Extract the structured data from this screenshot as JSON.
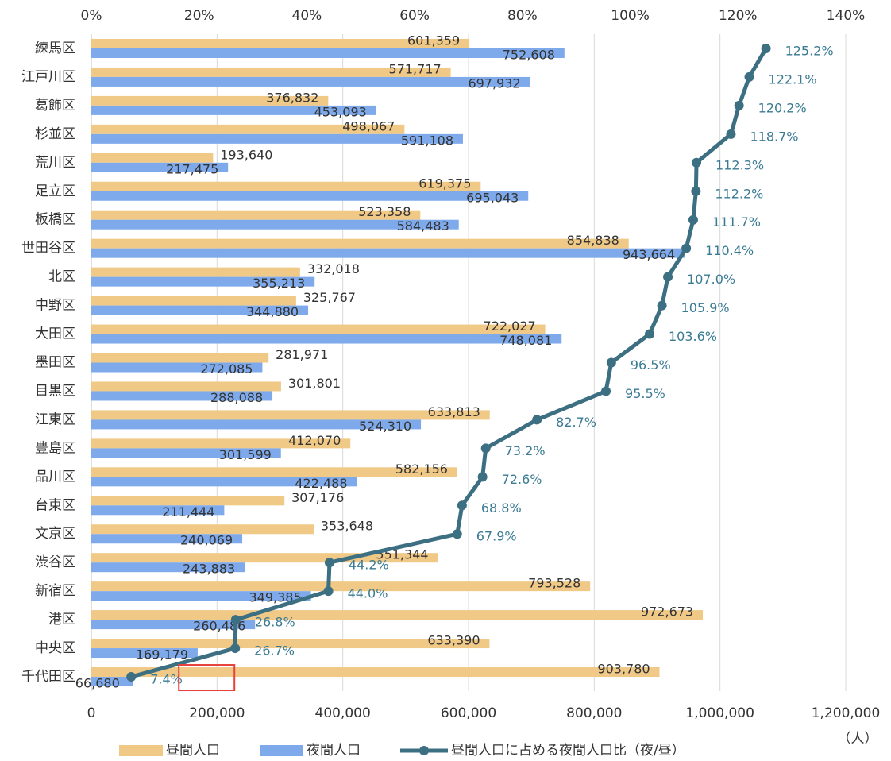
{
  "chart_data": {
    "type": "bar",
    "orientation": "horizontal",
    "categories": [
      "練馬区",
      "江戸川区",
      "葛飾区",
      "杉並区",
      "荒川区",
      "足立区",
      "板橋区",
      "世田谷区",
      "北区",
      "中野区",
      "大田区",
      "墨田区",
      "目黒区",
      "江東区",
      "豊島区",
      "品川区",
      "台東区",
      "文京区",
      "渋谷区",
      "新宿区",
      "港区",
      "中央区",
      "千代田区"
    ],
    "series": [
      {
        "name": "昼間人口",
        "color": "#f0c987",
        "values": [
          601359,
          571717,
          376832,
          498067,
          193640,
          619375,
          523358,
          854838,
          332018,
          325767,
          722027,
          281971,
          301801,
          633813,
          412070,
          582156,
          307176,
          353648,
          551344,
          793528,
          972673,
          633390,
          903780
        ],
        "value_labels": [
          "601,359",
          "571,717",
          "376,832",
          "498,067",
          "193,640",
          "619,375",
          "523,358",
          "854,838",
          "332,018",
          "325,767",
          "722,027",
          "281,971",
          "301,801",
          "633,813",
          "412,070",
          "582,156",
          "307,176",
          "353,648",
          "551,344",
          "793,528",
          "972,673",
          "633,390",
          "903,780"
        ]
      },
      {
        "name": "夜間人口",
        "color": "#7eaaec",
        "values": [
          752608,
          697932,
          453093,
          591108,
          217475,
          695043,
          584483,
          943664,
          355213,
          344880,
          748081,
          272085,
          288088,
          524310,
          301599,
          422488,
          211444,
          240069,
          243883,
          349385,
          260486,
          169179,
          66680
        ],
        "value_labels": [
          "752,608",
          "697,932",
          "453,093",
          "591,108",
          "217,475",
          "695,043",
          "584,483",
          "943,664",
          "355,213",
          "344,880",
          "748,081",
          "272,085",
          "288,088",
          "524,310",
          "301,599",
          "422,488",
          "211,444",
          "240,069",
          "243,883",
          "349,385",
          "260,486",
          "169,179",
          "66,680"
        ]
      },
      {
        "name": "昼間人口に占める夜間人口比（夜/昼）",
        "color": "#3d6f82",
        "type": "line",
        "axis": "x2",
        "values": [
          125.2,
          122.1,
          120.2,
          118.7,
          112.3,
          112.2,
          111.7,
          110.4,
          107.0,
          105.9,
          103.6,
          96.5,
          95.5,
          82.7,
          73.2,
          72.6,
          68.8,
          67.9,
          44.2,
          44.0,
          26.8,
          26.7,
          7.4
        ],
        "value_labels": [
          "125.2%",
          "122.1%",
          "120.2%",
          "118.7%",
          "112.3%",
          "112.2%",
          "111.7%",
          "110.4%",
          "107.0%",
          "105.9%",
          "103.6%",
          "96.5%",
          "95.5%",
          "82.7%",
          "73.2%",
          "72.6%",
          "68.8%",
          "67.9%",
          "44.2%",
          "44.0%",
          "26.8%",
          "26.7%",
          "7.4%"
        ]
      }
    ],
    "xlim": [
      0,
      1200000
    ],
    "xticks": [
      0,
      {
        "value": 200000,
        "label": "200,000"
      },
      {
        "value": 400000,
        "label": "400,000"
      },
      {
        "value": 600000,
        "label": "600,000"
      },
      {
        "value": 800000,
        "label": "800,000"
      },
      {
        "value": 1000000,
        "label": "1,000,000"
      },
      {
        "value": 1200000,
        "label": "1,200,000"
      }
    ],
    "x2lim": [
      0,
      140
    ],
    "x2ticks": [
      {
        "value": 0,
        "label": "0%"
      },
      {
        "value": 20,
        "label": "20%"
      },
      {
        "value": 40,
        "label": "40%"
      },
      {
        "value": 60,
        "label": "60%"
      },
      {
        "value": 80,
        "label": "80%"
      },
      {
        "value": 100,
        "label": "100%"
      },
      {
        "value": 120,
        "label": "120%"
      },
      {
        "value": 140,
        "label": "140%"
      }
    ],
    "x_unit_label": "（人）",
    "grid": true,
    "legend": "bottom"
  }
}
